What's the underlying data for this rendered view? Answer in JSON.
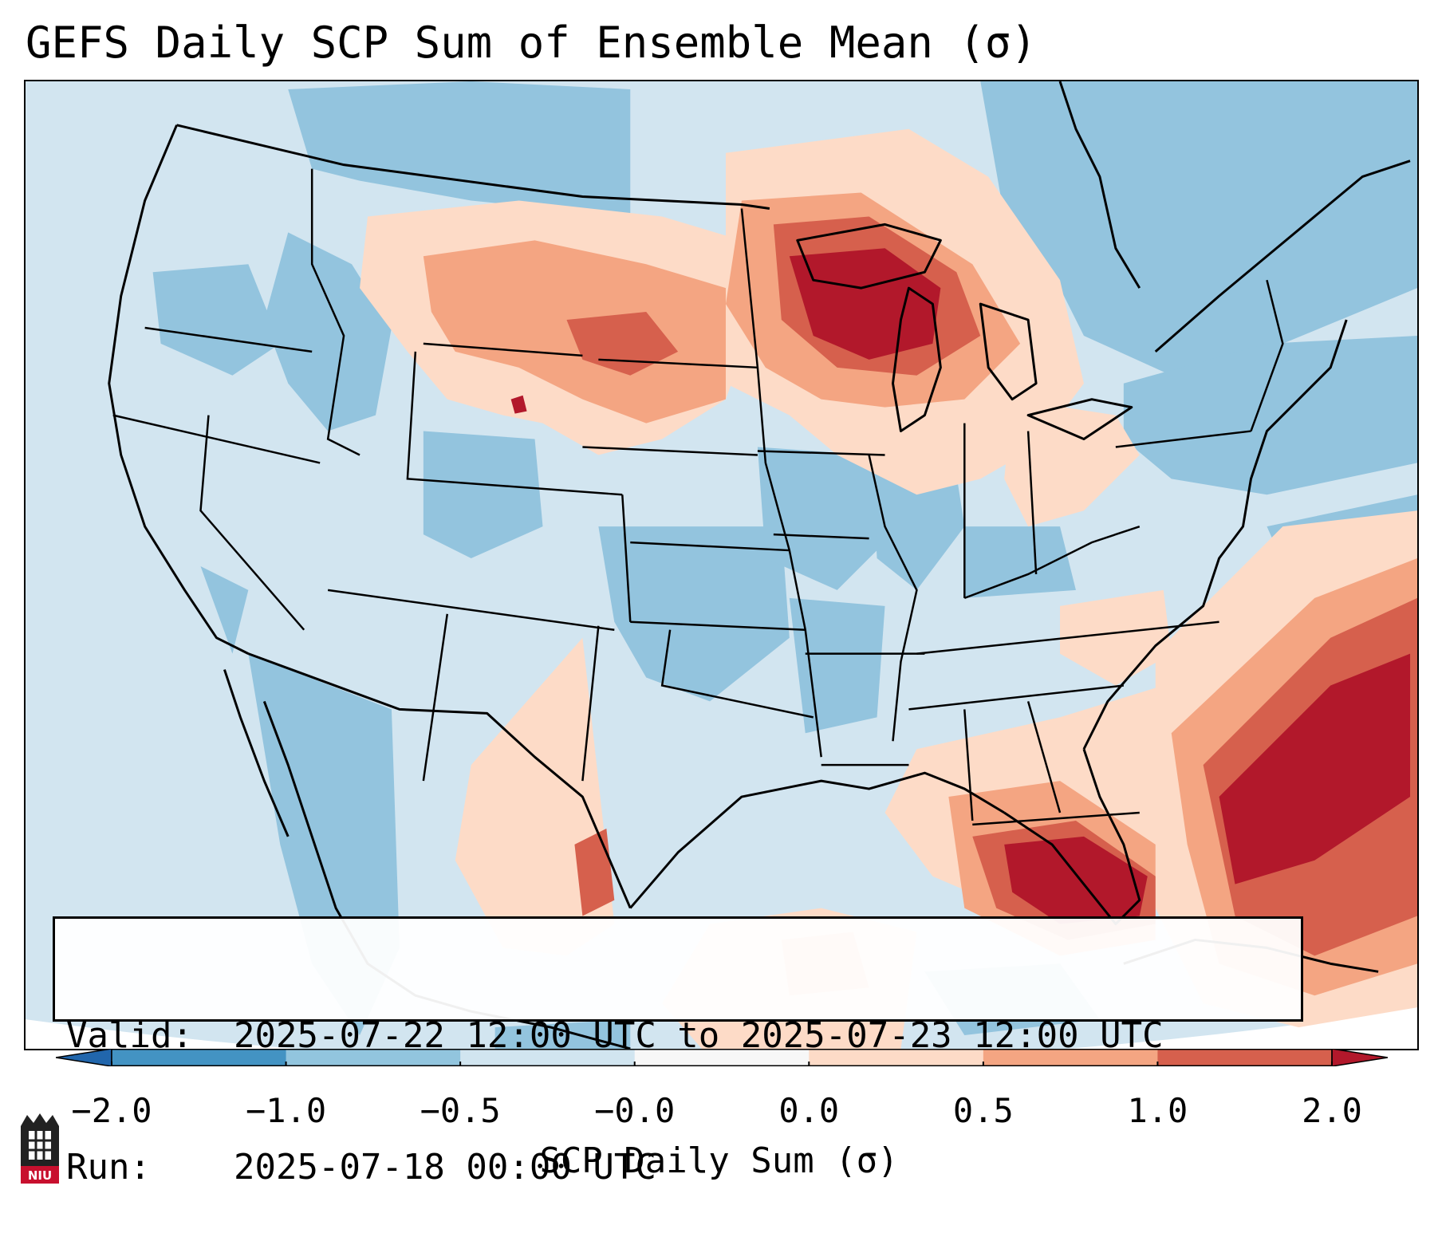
{
  "title": "GEFS Daily SCP Sum of Ensemble Mean (σ)",
  "info": {
    "valid_label": "Valid:",
    "valid_value": "2025-07-22 12:00 UTC to 2025-07-23 12:00 UTC",
    "run_label": "Run:",
    "run_value": "2025-07-18 00:00 UTC"
  },
  "colorbar": {
    "label": "SCP Daily Sum (σ)",
    "ticks": [
      "−2.0",
      "−1.0",
      "−0.5",
      "−0.0",
      "0.0",
      "0.5",
      "1.0",
      "2.0"
    ],
    "levels": [
      -2.0,
      -1.0,
      -0.5,
      -0.0,
      0.0,
      0.5,
      1.0,
      2.0
    ],
    "bin_colors": [
      "#4393c3",
      "#92c5de",
      "#d1e5f0",
      "#f7f7f7",
      "#fddbc7",
      "#f4a582",
      "#d6604d"
    ],
    "under_color": "#2166ac",
    "over_color": "#b2182b"
  },
  "map": {
    "domain": "Continental United States",
    "field": "SCP daily sum anomaly",
    "background_color": "#d2e5f0",
    "light_blue": "#93c4de",
    "light_red": "#fddbc7",
    "mid_red": "#f4a582",
    "red": "#d6604d",
    "dark_red": "#b2182b",
    "border_color": "#000000"
  },
  "logo": {
    "text": "NIU"
  }
}
